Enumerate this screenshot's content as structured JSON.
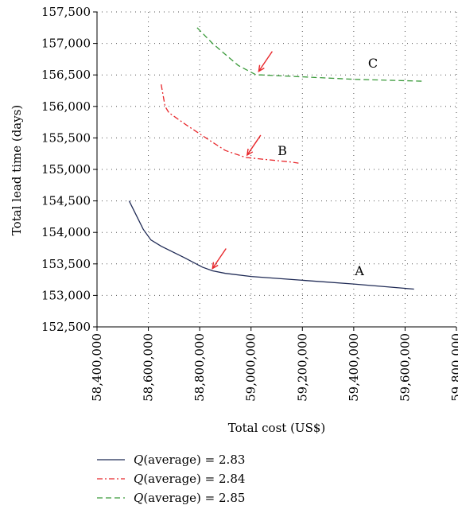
{
  "chart_data": {
    "type": "line",
    "title": "",
    "xlabel": "Total cost (US$)",
    "ylabel": "Total lead time (days)",
    "xlim": [
      58400000,
      59800000
    ],
    "ylim": [
      152500,
      157500
    ],
    "x_ticks": [
      58400000,
      58600000,
      58800000,
      59000000,
      59200000,
      59400000,
      59600000,
      59800000
    ],
    "x_tick_labels": [
      "58,400,000",
      "58,600,000",
      "58,800,000",
      "59,000,000",
      "59,200,000",
      "59,400,000",
      "59,600,000",
      "59,800,000"
    ],
    "y_ticks": [
      152500,
      153000,
      153500,
      154000,
      154500,
      155000,
      155500,
      156000,
      156500,
      157000,
      157500
    ],
    "y_tick_labels": [
      "152,500",
      "153,000",
      "153,500",
      "154,000",
      "154,500",
      "155,000",
      "155,500",
      "156,000",
      "156,500",
      "157,000",
      "157,500"
    ],
    "grid": "dotted",
    "legend_position": "bottom-left",
    "series": [
      {
        "id": "A",
        "label_prefix": "Q",
        "label_suffix": "(average) = 2.83",
        "curve_label": "A",
        "color": "#1f2a55",
        "dash": "solid",
        "x": [
          58525000,
          58580000,
          58610000,
          58650000,
          58740000,
          58810000,
          58850000,
          58900000,
          59000000,
          59100000,
          59200000,
          59400000,
          59635000
        ],
        "y": [
          154500,
          154050,
          153880,
          153780,
          153600,
          153450,
          153390,
          153350,
          153300,
          153270,
          153240,
          153180,
          153100
        ],
        "arrow": {
          "x": 58850000,
          "y": 153390
        }
      },
      {
        "id": "B",
        "label_prefix": "Q",
        "label_suffix": "(average) = 2.84",
        "curve_label": "B",
        "color": "#e8272b",
        "dash": "dash-dot",
        "x": [
          58650000,
          58665000,
          58680000,
          58750000,
          58850000,
          58900000,
          58950000,
          58980000,
          59050000,
          59150000,
          59185000
        ],
        "y": [
          156350,
          156000,
          155900,
          155700,
          155430,
          155300,
          155230,
          155190,
          155160,
          155120,
          155100
        ],
        "arrow": {
          "x": 58985000,
          "y": 155190
        }
      },
      {
        "id": "C",
        "label_prefix": "Q",
        "label_suffix": "(average) = 2.85",
        "curve_label": "C",
        "color": "#3a9a3a",
        "dash": "dashed",
        "x": [
          58790000,
          58850000,
          58950000,
          59020000,
          59040000,
          59200000,
          59400000,
          59670000
        ],
        "y": [
          157250,
          157000,
          156650,
          156500,
          156500,
          156470,
          156430,
          156400
        ],
        "arrow": {
          "x": 59030000,
          "y": 156520
        }
      }
    ]
  }
}
